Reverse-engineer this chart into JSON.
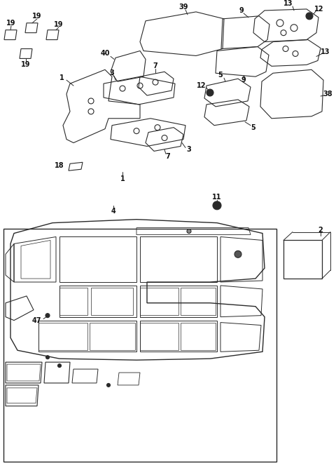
{
  "bg_color": "#ffffff",
  "line_color": "#2a2a2a",
  "text_color": "#111111",
  "fig_width": 4.8,
  "fig_height": 6.67,
  "dpi": 100
}
